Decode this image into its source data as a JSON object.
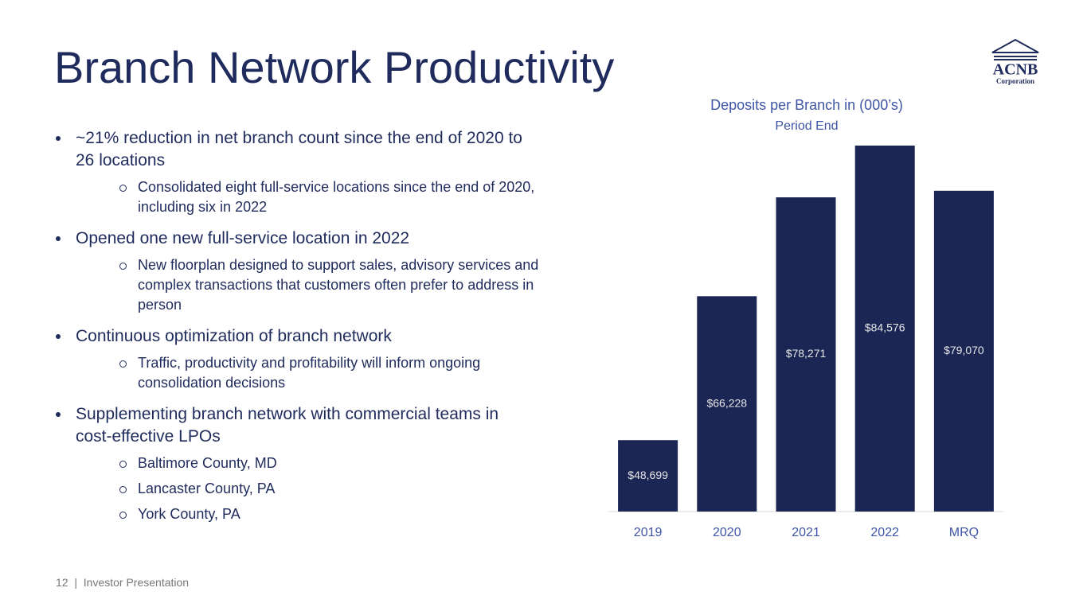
{
  "title": "Branch Network Productivity",
  "bullets": [
    {
      "text": "~21% reduction in net branch count since the end of 2020 to 26 locations",
      "sub": [
        "Consolidated eight full-service locations since the end of 2020, including six in 2022"
      ]
    },
    {
      "text": "Opened one new full-service location in 2022",
      "sub": [
        "New floorplan designed to support sales, advisory services and complex transactions that customers often prefer to address in person"
      ]
    },
    {
      "text": "Continuous optimization of branch network",
      "sub": [
        "Traffic, productivity and profitability will inform ongoing consolidation decisions"
      ]
    },
    {
      "text": "Supplementing branch network with commercial teams in cost-effective LPOs",
      "sub": [
        "Baltimore County, MD",
        "Lancaster County, PA",
        "York County, PA"
      ]
    }
  ],
  "footer": "12  |  Investor Presentation",
  "logo": {
    "name": "ACNB",
    "subtitle": "Corporation"
  },
  "chart_data": {
    "type": "bar",
    "title": "Deposits per Branch in (000’s)",
    "subtitle": "Period End",
    "categories": [
      "2019",
      "2020",
      "2021",
      "2022",
      "MRQ"
    ],
    "values": [
      48699,
      66228,
      78271,
      84576,
      79070
    ],
    "value_labels": [
      "$48,699",
      "$66,228",
      "$78,271",
      "$84,576",
      "$79,070"
    ],
    "color": "#1b2655",
    "ylim": [
      40000,
      90000
    ]
  }
}
